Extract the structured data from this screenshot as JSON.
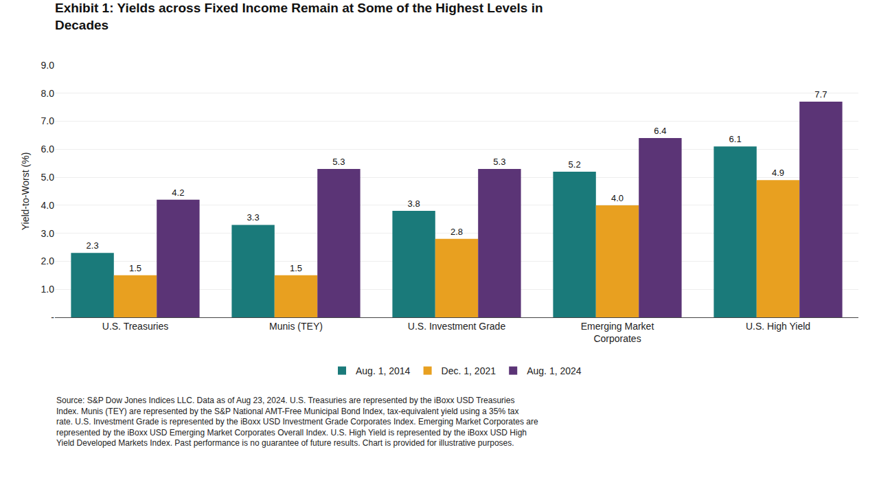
{
  "chart_data": {
    "type": "bar",
    "title": "Exhibit 1: Yields across Fixed Income Remain at Some of the Highest Levels in\nDecades",
    "y_label": "Yield-to-Worst (%)",
    "categories": [
      "U.S. Treasuries",
      "Munis (TEY)",
      "U.S. Investment Grade",
      "Emerging Market\nCorporates",
      "U.S. High Yield"
    ],
    "series": [
      {
        "name": "Aug. 1, 2014",
        "color": "#1a7a7a",
        "values": [
          2.3,
          3.3,
          3.8,
          5.2,
          6.1
        ],
        "value_labels": [
          "2.3",
          "3.3",
          "3.8",
          "5.2",
          "6.1"
        ]
      },
      {
        "name": "Dec. 1, 2021",
        "color": "#e8a020",
        "values": [
          1.5,
          1.5,
          2.8,
          4.0,
          4.9
        ],
        "value_labels": [
          "1.5",
          "1.5",
          "2.8",
          "4.0",
          "4.9"
        ]
      },
      {
        "name": "Aug. 1, 2024",
        "color": "#5b3476",
        "values": [
          4.2,
          5.3,
          5.3,
          6.4,
          7.7
        ],
        "value_labels": [
          "4.2",
          "5.3",
          "5.3",
          "6.4",
          "7.7"
        ]
      }
    ],
    "ylim": [
      0,
      9.0
    ],
    "yticks": [
      {
        "value": 0,
        "label": "-"
      },
      {
        "value": 1.0,
        "label": "1.0"
      },
      {
        "value": 2.0,
        "label": "2.0"
      },
      {
        "value": 3.0,
        "label": "3.0"
      },
      {
        "value": 4.0,
        "label": "4.0"
      },
      {
        "value": 5.0,
        "label": "5.0"
      },
      {
        "value": 6.0,
        "label": "6.0"
      },
      {
        "value": 7.0,
        "label": "7.0"
      },
      {
        "value": 8.0,
        "label": "8.0"
      },
      {
        "value": 9.0,
        "label": "9.0"
      }
    ],
    "grid": true,
    "legend": "bottom",
    "data_labels": true,
    "annotations": [
      "Source: S&P Dow Jones Indices LLC. Data as of Aug 23, 2024. U.S. Treasuries are represented by the iBoxx USD Treasuries\nIndex. Munis (TEY) are represented by the S&P National AMT-Free Municipal Bond Index, tax-equivalent yield using a 35% tax\nrate. U.S. Investment Grade is represented by the iBoxx USD Investment Grade Corporates Index. Emerging Market Corporates are\nrepresented by the iBoxx USD Emerging Market Corporates Overall Index. U.S. High Yield is represented by the iBoxx USD High\nYield Developed Markets Index. Past performance is no guarantee of future results. Chart is provided for illustrative purposes."
    ]
  }
}
